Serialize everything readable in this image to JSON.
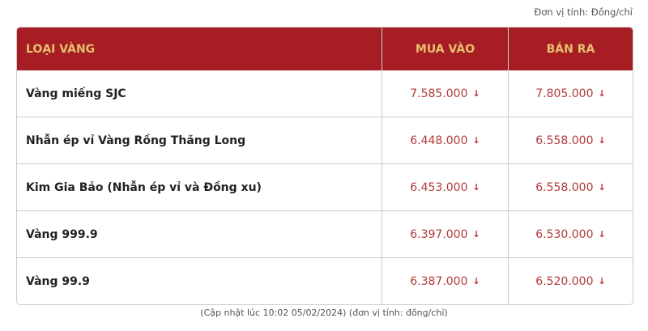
{
  "unit_note": "Đơn vị tính: Đồng/chỉ",
  "header": {
    "type": "LOẠI VÀNG",
    "buy": "MUA VÀO",
    "sell": "BÁN RA"
  },
  "colors": {
    "header_bg": "#a61e24",
    "header_text": "#e7bf6e",
    "price": "#b23a3a"
  },
  "rows": [
    {
      "name": "Vàng miếng SJC",
      "buy": "7.585.000",
      "sell": "7.805.000",
      "trend": "down"
    },
    {
      "name": "Nhẫn ép vỉ Vàng Rồng Thăng Long",
      "buy": "6.448.000",
      "sell": "6.558.000",
      "trend": "down"
    },
    {
      "name": "Kim Gia Bảo (Nhẫn ép vỉ và Đồng xu)",
      "buy": "6.453.000",
      "sell": "6.558.000",
      "trend": "down"
    },
    {
      "name": "Vàng 999.9",
      "buy": "6.397.000",
      "sell": "6.530.000",
      "trend": "down"
    },
    {
      "name": "Vàng 99.9",
      "buy": "6.387.000",
      "sell": "6.520.000",
      "trend": "down"
    }
  ],
  "footer": "(Cập nhật lúc 10:02 05/02/2024) (đơn vị tính: đồng/chỉ)"
}
